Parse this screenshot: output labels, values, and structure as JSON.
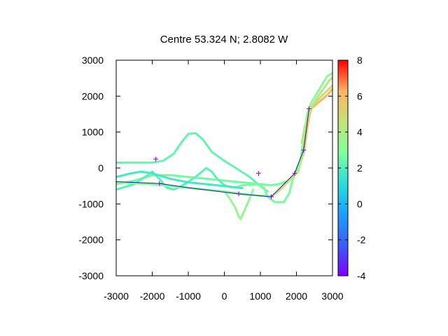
{
  "chart_data": {
    "type": "line",
    "title": "Centre 53.324 N; 2.8082  W",
    "xlabel": "",
    "ylabel": "",
    "xlim": [
      -3000,
      3000
    ],
    "ylim": [
      -3000,
      3000
    ],
    "x_ticks": [
      -3000,
      -2000,
      -1000,
      0,
      1000,
      2000,
      3000
    ],
    "y_ticks": [
      -3000,
      -2000,
      -1000,
      0,
      1000,
      2000,
      3000
    ],
    "x_tick_labels": [
      "-3000",
      "-2000",
      "-1000",
      "0",
      "1000",
      "2000",
      "3000"
    ],
    "y_tick_labels": [
      "-3000",
      "-2000",
      "-1000",
      "0",
      "1000",
      "2000",
      "3000"
    ],
    "grid": false,
    "colorbar": {
      "range": [
        -4,
        8
      ],
      "ticks": [
        -4,
        -2,
        0,
        2,
        4,
        6,
        8
      ],
      "tick_labels": [
        "-4",
        "-2",
        "0",
        "2",
        "4",
        "6",
        "8"
      ],
      "palette": [
        "#7f00ff",
        "#3a5cf9",
        "#1aa0ff",
        "#2bdcdc",
        "#80ff9a",
        "#c5e27a",
        "#ffb360",
        "#ff0000"
      ]
    },
    "tracks": [
      {
        "colour_value": 2.3,
        "points": [
          [
            -3000,
            150
          ],
          [
            -2700,
            150
          ],
          [
            -2300,
            150
          ],
          [
            -2000,
            150
          ],
          [
            -1700,
            200
          ],
          [
            -1400,
            400
          ],
          [
            -1200,
            700
          ],
          [
            -1000,
            950
          ],
          [
            -800,
            970
          ],
          [
            -600,
            800
          ],
          [
            -350,
            450
          ],
          [
            0,
            200
          ],
          [
            400,
            -50
          ],
          [
            700,
            -250
          ],
          [
            1000,
            -500
          ],
          [
            1200,
            -650
          ]
        ]
      },
      {
        "colour_value": 2.6,
        "points": [
          [
            -3000,
            -450
          ],
          [
            -2500,
            -350
          ],
          [
            -2000,
            -200
          ],
          [
            -1500,
            -200
          ],
          [
            -1000,
            -250
          ],
          [
            -500,
            -300
          ],
          [
            0,
            -350
          ],
          [
            500,
            -400
          ],
          [
            1000,
            -450
          ],
          [
            1300,
            -480
          ],
          [
            1500,
            -450
          ],
          [
            1700,
            -380
          ]
        ]
      },
      {
        "colour_value": 2.1,
        "points": [
          [
            -3000,
            -600
          ],
          [
            -2500,
            -450
          ],
          [
            -2200,
            -250
          ],
          [
            -2000,
            -100
          ],
          [
            -1800,
            -300
          ],
          [
            -1600,
            -550
          ],
          [
            -1400,
            -600
          ],
          [
            -1100,
            -450
          ],
          [
            -800,
            -250
          ],
          [
            -500,
            0
          ],
          [
            -350,
            -100
          ],
          [
            -200,
            -300
          ],
          [
            0,
            -480
          ],
          [
            200,
            -540
          ]
        ]
      },
      {
        "colour_value": 2.8,
        "points": [
          [
            -3000,
            -400
          ],
          [
            -2000,
            -450
          ],
          [
            -1000,
            -550
          ],
          [
            0,
            -650
          ],
          [
            500,
            -720
          ],
          [
            900,
            -760
          ],
          [
            1300,
            -790
          ]
        ]
      },
      {
        "colour_value": 3.4,
        "points": [
          [
            0,
            -650
          ],
          [
            150,
            -850
          ],
          [
            300,
            -1100
          ],
          [
            400,
            -1350
          ],
          [
            450,
            -1420
          ],
          [
            550,
            -1200
          ],
          [
            700,
            -850
          ],
          [
            800,
            -600
          ]
        ]
      },
      {
        "colour_value": 2.7,
        "points": [
          [
            300,
            -550
          ],
          [
            500,
            -480
          ],
          [
            900,
            -450
          ],
          [
            1100,
            -550
          ],
          [
            1200,
            -800
          ],
          [
            1400,
            -950
          ],
          [
            1650,
            -950
          ],
          [
            1800,
            -700
          ],
          [
            1900,
            -300
          ],
          [
            2000,
            -50
          ],
          [
            2100,
            200
          ],
          [
            2200,
            400
          ]
        ]
      },
      {
        "colour_value": 4.8,
        "points": [
          [
            1300,
            -800
          ],
          [
            1500,
            -650
          ],
          [
            1700,
            -450
          ],
          [
            1900,
            -250
          ],
          [
            2000,
            -150
          ],
          [
            2100,
            100
          ],
          [
            2200,
            400
          ],
          [
            2250,
            700
          ],
          [
            2300,
            1100
          ],
          [
            2350,
            1400
          ],
          [
            2400,
            1650
          ],
          [
            2550,
            1850
          ],
          [
            2700,
            2000
          ],
          [
            2850,
            2150
          ],
          [
            3000,
            2300
          ]
        ]
      },
      {
        "colour_value": 6.2,
        "points": [
          [
            2200,
            600
          ],
          [
            2280,
            1050
          ],
          [
            2340,
            1400
          ],
          [
            2420,
            1660
          ],
          [
            2580,
            1800
          ],
          [
            2740,
            1930
          ],
          [
            2880,
            2060
          ],
          [
            3000,
            2200
          ]
        ]
      },
      {
        "colour_value": 3.2,
        "points": [
          [
            2050,
            -100
          ],
          [
            2120,
            300
          ],
          [
            2180,
            700
          ],
          [
            2240,
            1100
          ],
          [
            2300,
            1500
          ],
          [
            2400,
            1800
          ],
          [
            2550,
            2050
          ],
          [
            2700,
            2300
          ],
          [
            2850,
            2550
          ],
          [
            3000,
            2650
          ]
        ]
      },
      {
        "colour_value": 4.2,
        "points": [
          [
            2150,
            700
          ],
          [
            2230,
            1150
          ],
          [
            2320,
            1450
          ],
          [
            2450,
            1750
          ],
          [
            2600,
            2000
          ],
          [
            2750,
            2200
          ],
          [
            2900,
            2420
          ],
          [
            3000,
            2520
          ]
        ]
      },
      {
        "colour_value": 1.7,
        "points": [
          [
            -3000,
            -250
          ],
          [
            -2600,
            -150
          ],
          [
            -2300,
            -100
          ],
          [
            -2000,
            -150
          ],
          [
            -1500,
            -300
          ],
          [
            -1000,
            -400
          ],
          [
            -500,
            -450
          ],
          [
            0,
            -500
          ],
          [
            500,
            -560
          ]
        ]
      }
    ],
    "route": {
      "colour": "#1a1aaa",
      "points": [
        [
          -3000,
          -380
        ],
        [
          -1800,
          -430
        ],
        [
          -1000,
          -550
        ],
        [
          400,
          -720
        ],
        [
          1300,
          -800
        ],
        [
          1950,
          -150
        ],
        [
          2200,
          500
        ],
        [
          2350,
          1650
        ]
      ]
    },
    "route_markers": [
      [
        -1800,
        -430
      ],
      [
        400,
        -720
      ],
      [
        1300,
        -800
      ],
      [
        1950,
        -150
      ],
      [
        2200,
        500
      ],
      [
        2350,
        1650
      ]
    ],
    "purple_markers": [
      [
        -1900,
        250
      ],
      [
        950,
        -150
      ]
    ],
    "marker_colour": "#8000c0"
  }
}
